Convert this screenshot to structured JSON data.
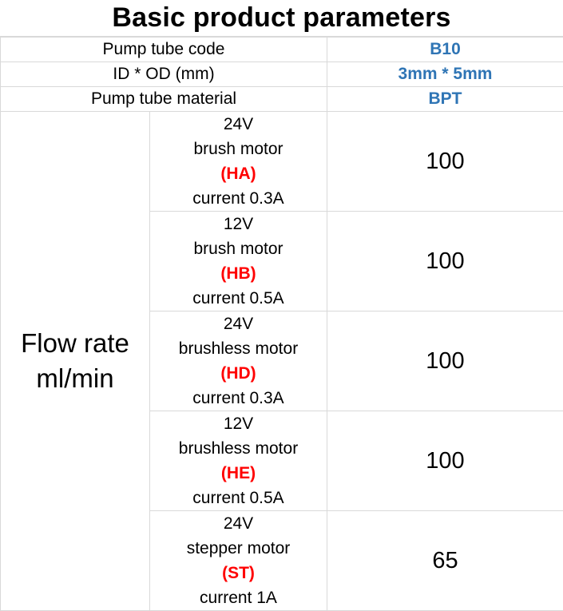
{
  "title": "Basic product parameters",
  "params": [
    {
      "label": "Pump tube code",
      "value": "B10"
    },
    {
      "label": "ID * OD (mm)",
      "value": "3mm * 5mm"
    },
    {
      "label": "Pump tube material",
      "value": "BPT"
    }
  ],
  "flow": {
    "label_line1": "Flow rate",
    "label_line2": "ml/min",
    "rows": [
      {
        "voltage": "24V",
        "motor": "brush motor",
        "code": "(HA)",
        "current": "current 0.3A",
        "value": "100"
      },
      {
        "voltage": "12V",
        "motor": "brush motor",
        "code": "(HB)",
        "current": "current 0.5A",
        "value": "100"
      },
      {
        "voltage": "24V",
        "motor": "brushless motor",
        "code": "(HD)",
        "current": "current 0.3A",
        "value": "100"
      },
      {
        "voltage": "12V",
        "motor": "brushless motor",
        "code": "(HE)",
        "current": "current 0.5A",
        "value": "100"
      },
      {
        "voltage": "24V",
        "motor": "stepper motor",
        "code": "(ST)",
        "current": "current 1A",
        "value": "65"
      }
    ]
  },
  "colors": {
    "value_blue": "#2f75b5",
    "code_red": "#ff0000",
    "grid": "#d9d9d9"
  }
}
